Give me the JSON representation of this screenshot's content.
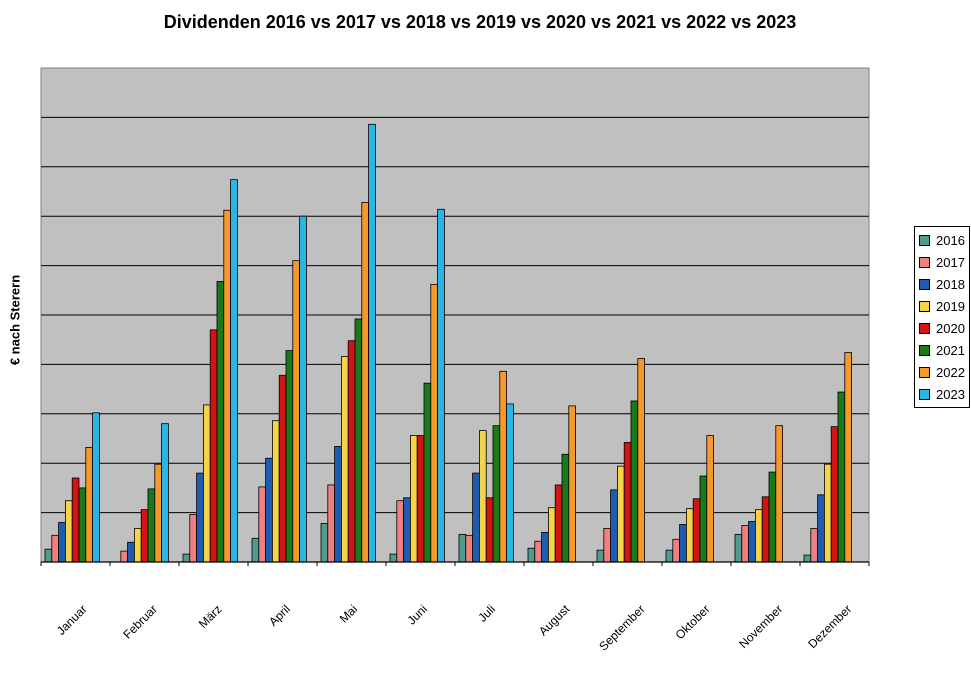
{
  "chart_data": {
    "type": "bar",
    "title": "Dividenden 2016 vs 2017 vs 2018 vs 2019 vs 2020 vs 2021 vs 2022 vs 2023",
    "xlabel": "",
    "ylabel": "€ nach Sterern",
    "ylim": [
      0,
      100
    ],
    "grid": true,
    "legend_position": "right",
    "categories": [
      "Januar",
      "Februar",
      "März",
      "April",
      "Mai",
      "Juni",
      "Juli",
      "August",
      "September",
      "Oktober",
      "November",
      "Dezember"
    ],
    "series": [
      {
        "name": "2016",
        "color": "#4f9b8f",
        "values": [
          2.6,
          0,
          1.6,
          4.8,
          7.8,
          1.6,
          5.6,
          2.8,
          2.4,
          2.4,
          5.6,
          1.4
        ]
      },
      {
        "name": "2017",
        "color": "#f08080",
        "values": [
          5.4,
          2.2,
          9.6,
          15.2,
          15.6,
          12.4,
          5.4,
          4.2,
          6.8,
          4.6,
          7.4,
          6.8
        ]
      },
      {
        "name": "2018",
        "color": "#1e5cb3",
        "values": [
          8.0,
          4.0,
          18.0,
          21.0,
          23.4,
          13.0,
          18.0,
          6.0,
          14.6,
          7.6,
          8.2,
          13.6
        ]
      },
      {
        "name": "2019",
        "color": "#f5d44a",
        "values": [
          12.4,
          6.8,
          31.8,
          28.6,
          41.6,
          25.6,
          26.6,
          11.0,
          19.4,
          10.8,
          10.6,
          19.8
        ]
      },
      {
        "name": "2020",
        "color": "#d21414",
        "values": [
          17.0,
          10.6,
          47.0,
          37.8,
          44.8,
          25.6,
          13.0,
          15.6,
          24.2,
          12.8,
          13.2,
          27.4
        ]
      },
      {
        "name": "2021",
        "color": "#1a7a1a",
        "values": [
          15.0,
          14.8,
          56.8,
          42.8,
          49.2,
          36.2,
          27.6,
          21.8,
          32.6,
          17.4,
          18.2,
          34.4
        ]
      },
      {
        "name": "2022",
        "color": "#f59a2a",
        "values": [
          23.2,
          19.8,
          71.2,
          61.0,
          72.8,
          56.2,
          38.6,
          31.6,
          41.2,
          25.6,
          27.6,
          42.4
        ]
      },
      {
        "name": "2023",
        "color": "#29b6e6",
        "values": [
          30.2,
          28.0,
          77.4,
          70.0,
          88.6,
          71.4,
          32.0,
          0,
          0,
          0,
          0,
          0
        ]
      }
    ]
  }
}
